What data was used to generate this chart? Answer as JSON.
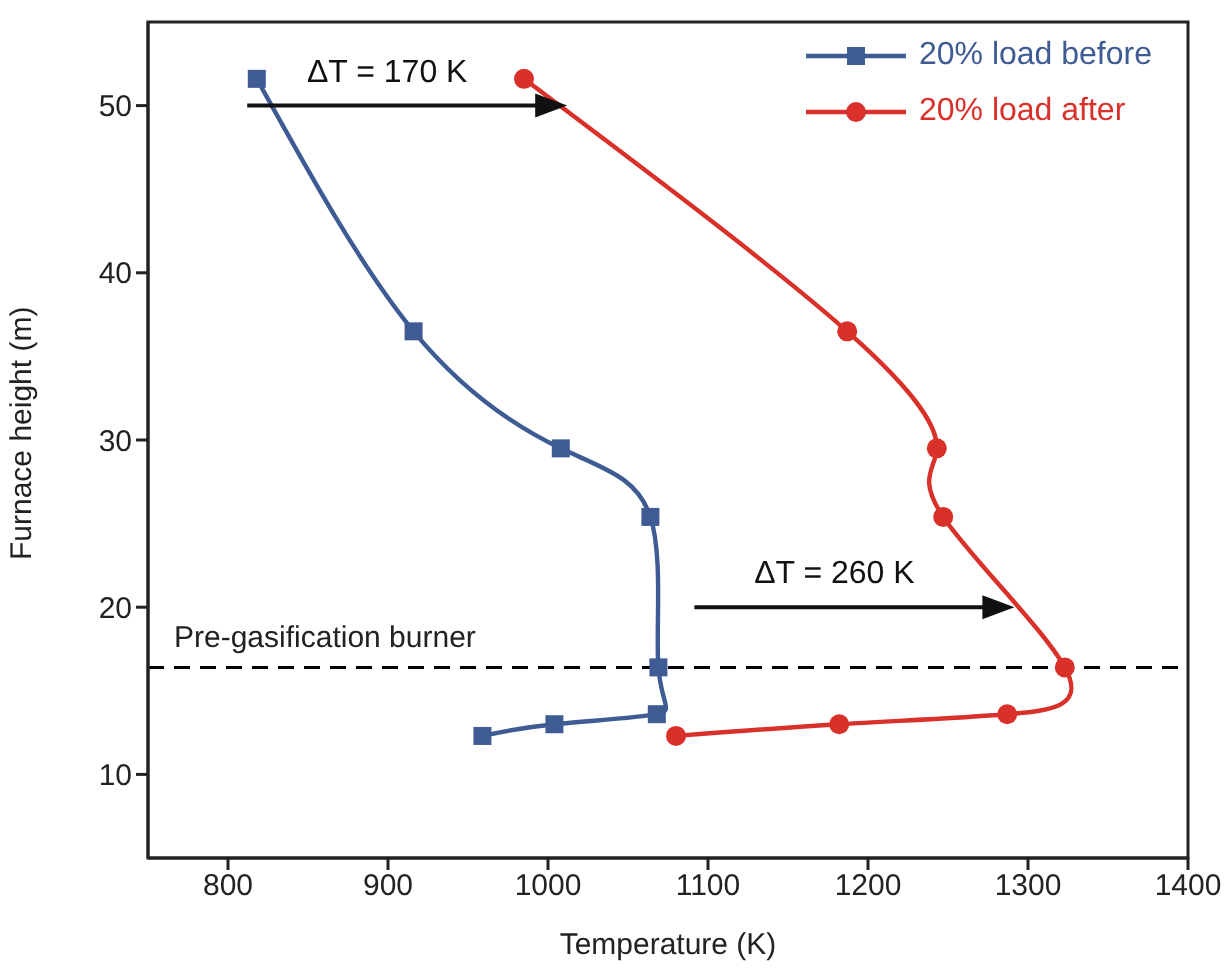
{
  "chart_data": {
    "type": "line",
    "xlabel": "Temperature (K)",
    "ylabel": "Furnace height (m)",
    "xlim": [
      750,
      1400
    ],
    "xticks": [
      800,
      900,
      1000,
      1100,
      1200,
      1300,
      1400
    ],
    "ylim": [
      5,
      55
    ],
    "yticks": [
      10,
      20,
      30,
      40,
      50
    ],
    "grid": false,
    "legend": "top right",
    "line_style": "solid",
    "series": [
      {
        "name": "20% load before",
        "color": "#3f5b93",
        "marker": "square",
        "x": [
          818,
          916,
          1008,
          1064,
          1069,
          1068,
          1004,
          959
        ],
        "values": [
          51.6,
          36.5,
          29.5,
          25.4,
          16.4,
          13.6,
          13.0,
          12.3
        ]
      },
      {
        "name": "20% load after",
        "color": "#d9302a",
        "marker": "circle",
        "x": [
          985,
          1187,
          1243,
          1247,
          1323,
          1287,
          1182,
          1080
        ],
        "values": [
          51.6,
          36.5,
          29.5,
          25.4,
          16.4,
          13.6,
          13.0,
          12.3
        ]
      }
    ],
    "ref_lines": [
      {
        "axis": "y",
        "value": 16.4,
        "label": "Pre-gasification burner",
        "color": "#000000",
        "line_style": "dashed"
      }
    ],
    "annotations": [
      "ΔT = 170 K",
      "ΔT = 260 K"
    ]
  }
}
